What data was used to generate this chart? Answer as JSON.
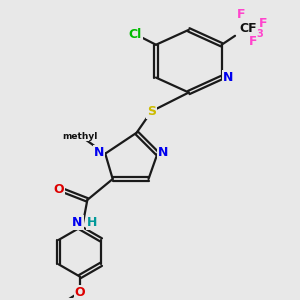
{
  "bg_color": "#e8e8e8",
  "bond_color": "#1a1a1a",
  "bond_lw": 1.6,
  "dbo": 0.06,
  "atom_colors": {
    "N": "#0000ee",
    "S": "#ccbb00",
    "O": "#dd0000",
    "Cl": "#00bb00",
    "F": "#ff44cc",
    "C": "#111111",
    "H": "#009999"
  },
  "fs": 9,
  "fs_sub": 7,
  "fs_small": 8
}
